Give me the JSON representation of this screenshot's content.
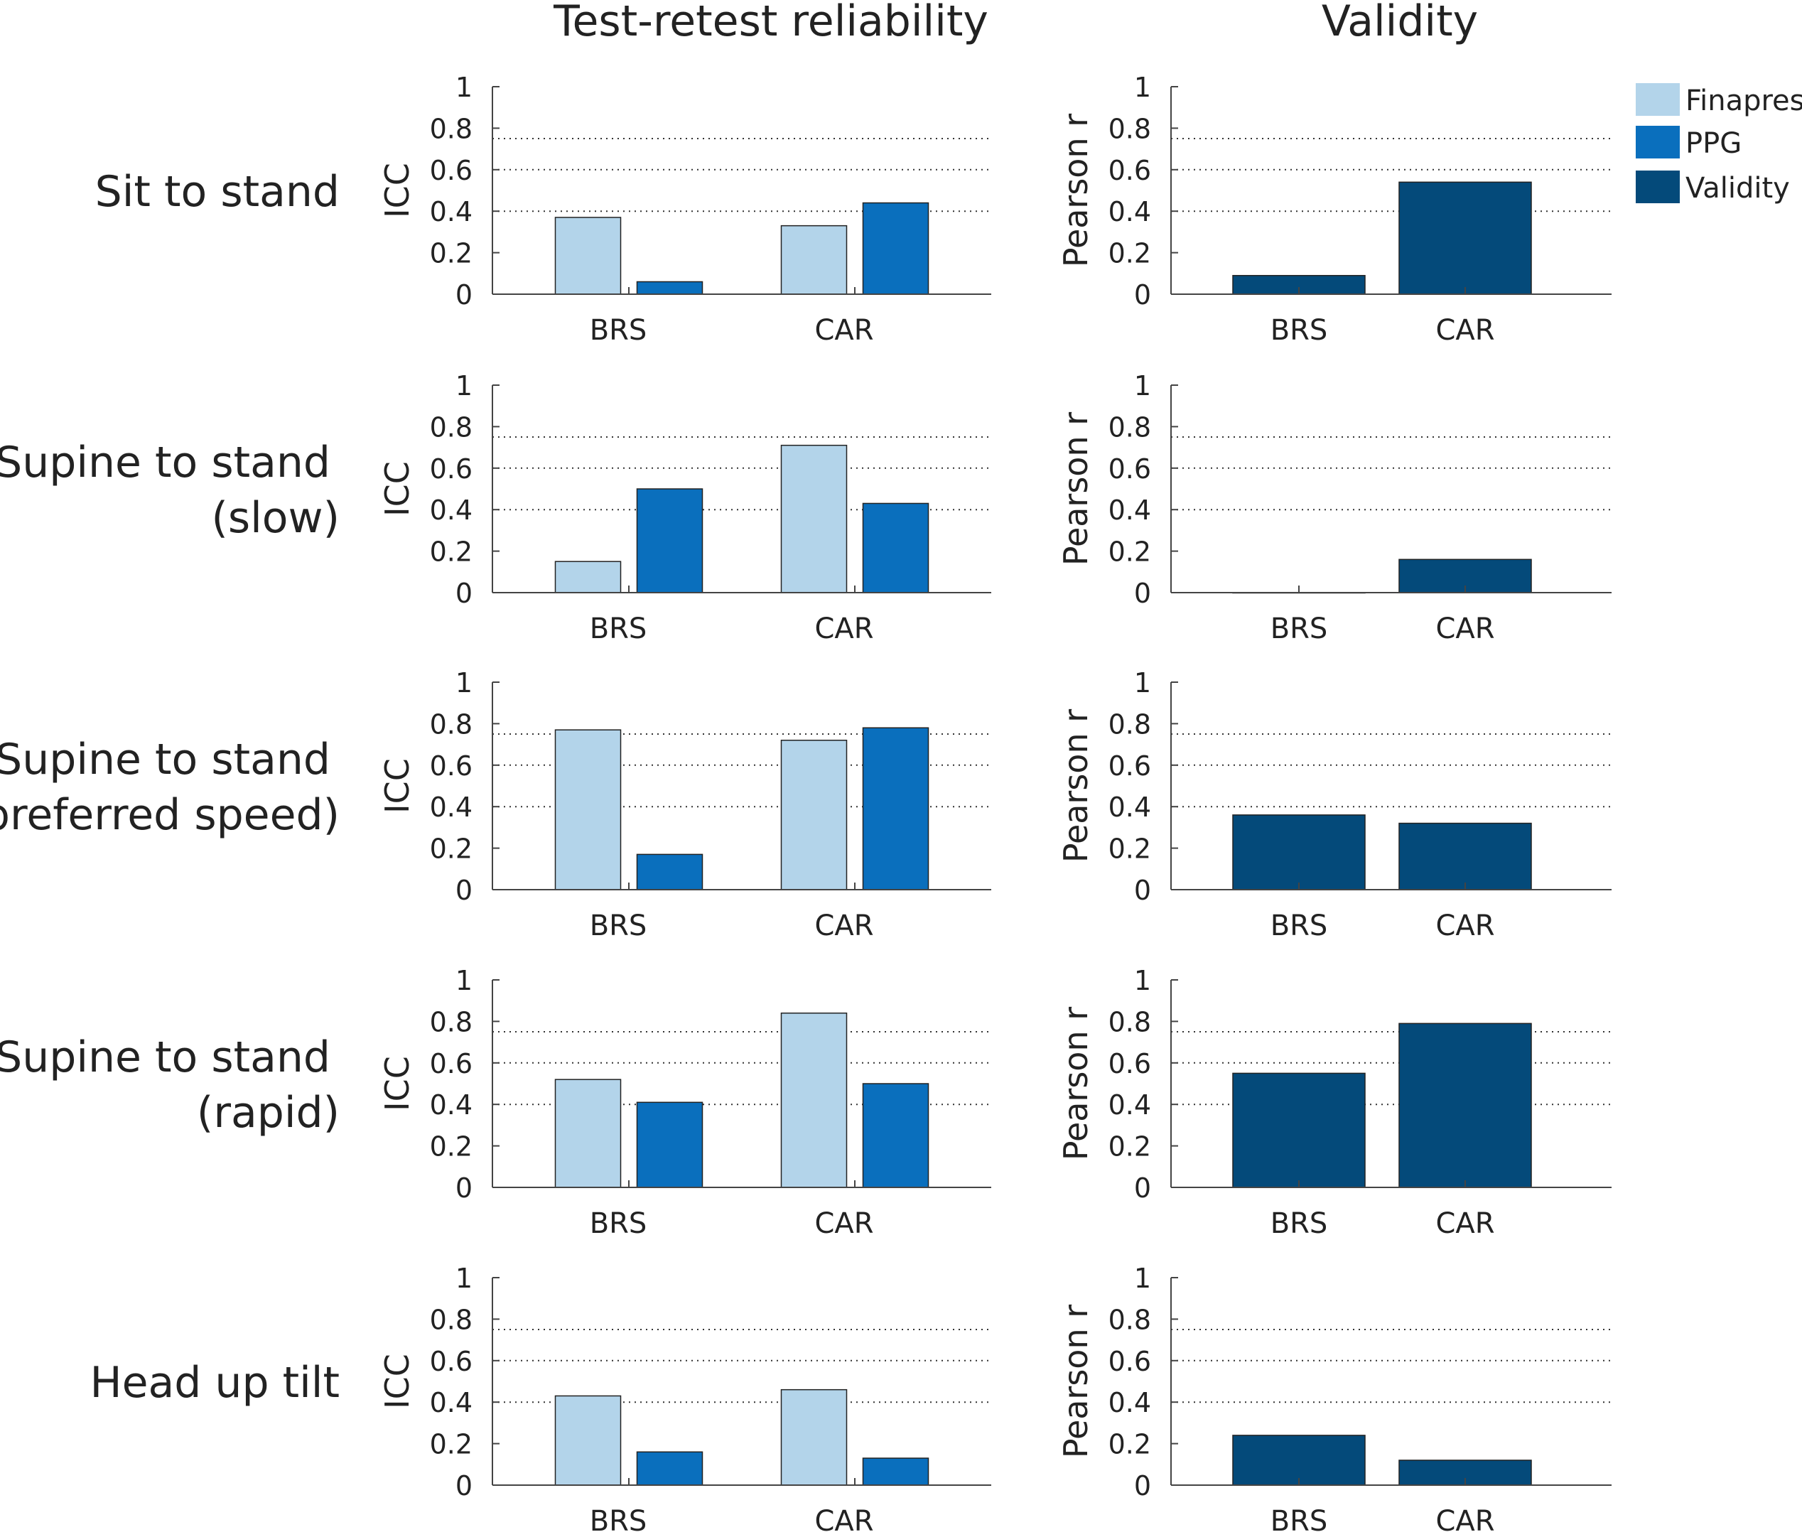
{
  "colors": {
    "finapres": "#b3d4ea",
    "ppg": "#0a6fbd",
    "validity": "#044a7a"
  },
  "chart_data": {
    "type": "bar",
    "column_titles": [
      "Test-retest reliability",
      "Validity"
    ],
    "categories": [
      "BRS",
      "CAR"
    ],
    "ylabels": {
      "reliability": "ICC",
      "validity": "Pearson r"
    },
    "ylim": [
      0,
      1
    ],
    "reliability_ticks": [
      "0",
      "0.2",
      "0.4",
      "0.6",
      "0.8",
      "1"
    ],
    "validity_ticks": [
      "0",
      "0.2",
      "0.4",
      "0.6",
      "0.8",
      "1"
    ],
    "reference_lines": [
      0.4,
      0.6,
      0.75
    ],
    "legend": [
      "Finapres",
      "PPG",
      "Validity"
    ],
    "rows": [
      {
        "label": [
          "Sit to stand"
        ],
        "reliability": {
          "Finapres": [
            0.37,
            0.33
          ],
          "PPG": [
            0.06,
            0.44
          ]
        },
        "validity": [
          0.09,
          0.54
        ]
      },
      {
        "label": [
          "Supine to stand",
          "(slow)"
        ],
        "reliability": {
          "Finapres": [
            0.15,
            0.71
          ],
          "PPG": [
            0.5,
            0.43
          ]
        },
        "validity": [
          0.0,
          0.16
        ]
      },
      {
        "label": [
          "Supine to stand",
          "(preferred speed)"
        ],
        "reliability": {
          "Finapres": [
            0.77,
            0.72
          ],
          "PPG": [
            0.17,
            0.78
          ]
        },
        "validity": [
          0.36,
          0.32
        ]
      },
      {
        "label": [
          "Supine to stand",
          "(rapid)"
        ],
        "reliability": {
          "Finapres": [
            0.52,
            0.84
          ],
          "PPG": [
            0.41,
            0.5
          ]
        },
        "validity": [
          0.55,
          0.79
        ]
      },
      {
        "label": [
          "Head up tilt"
        ],
        "reliability": {
          "Finapres": [
            0.43,
            0.46
          ],
          "PPG": [
            0.16,
            0.13
          ]
        },
        "validity": [
          0.24,
          0.12
        ]
      }
    ]
  }
}
